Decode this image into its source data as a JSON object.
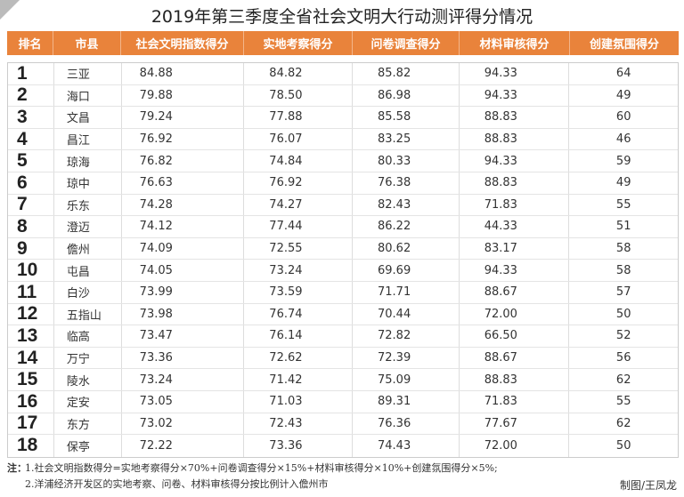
{
  "title": "2019年第三季度全省社会文明大行动测评得分情况",
  "table": {
    "headers": [
      "排名",
      "市县",
      "社会文明指数得分",
      "实地考察得分",
      "问卷调查得分",
      "材料审核得分",
      "创建氛围得分"
    ],
    "rows": [
      [
        "1",
        "三亚",
        "84.88",
        "84.82",
        "85.82",
        "94.33",
        "64"
      ],
      [
        "2",
        "海口",
        "79.88",
        "78.50",
        "86.98",
        "94.33",
        "49"
      ],
      [
        "3",
        "文昌",
        "79.24",
        "77.88",
        "85.58",
        "88.83",
        "60"
      ],
      [
        "4",
        "昌江",
        "76.92",
        "76.07",
        "83.25",
        "88.83",
        "46"
      ],
      [
        "5",
        "琼海",
        "76.82",
        "74.84",
        "80.33",
        "94.33",
        "59"
      ],
      [
        "6",
        "琼中",
        "76.63",
        "76.92",
        "76.38",
        "88.83",
        "49"
      ],
      [
        "7",
        "乐东",
        "74.28",
        "74.27",
        "82.43",
        "71.83",
        "55"
      ],
      [
        "8",
        "澄迈",
        "74.12",
        "77.44",
        "86.22",
        "44.33",
        "51"
      ],
      [
        "9",
        "儋州",
        "74.09",
        "72.55",
        "80.62",
        "83.17",
        "58"
      ],
      [
        "10",
        "屯昌",
        "74.05",
        "73.24",
        "69.69",
        "94.33",
        "58"
      ],
      [
        "11",
        "白沙",
        "73.99",
        "73.59",
        "71.71",
        "88.67",
        "57"
      ],
      [
        "12",
        "五指山",
        "73.98",
        "76.74",
        "70.44",
        "72.00",
        "50"
      ],
      [
        "13",
        "临高",
        "73.47",
        "76.14",
        "72.82",
        "66.50",
        "52"
      ],
      [
        "14",
        "万宁",
        "73.36",
        "72.62",
        "72.39",
        "88.67",
        "56"
      ],
      [
        "15",
        "陵水",
        "73.24",
        "71.42",
        "75.09",
        "88.83",
        "62"
      ],
      [
        "16",
        "定安",
        "73.05",
        "71.03",
        "89.31",
        "71.83",
        "55"
      ],
      [
        "17",
        "东方",
        "73.02",
        "72.43",
        "76.36",
        "77.67",
        "62"
      ],
      [
        "18",
        "保亭",
        "72.22",
        "73.36",
        "74.43",
        "72.00",
        "50"
      ]
    ]
  },
  "notes": {
    "label": "注：",
    "items": [
      "1.社会文明指数得分=实地考察得分×70%+问卷调查得分×15%+材料审核得分×10%+创建氛围得分×5%;",
      "2.洋浦经济开发区的实地考察、问卷、材料审核得分按比例计入儋州市"
    ]
  },
  "credit": "制图/王凤龙"
}
